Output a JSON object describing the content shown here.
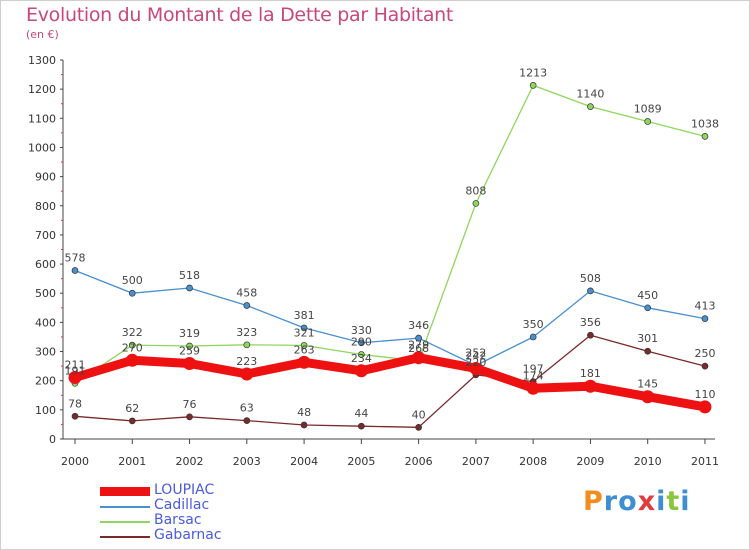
{
  "chart_data": {
    "type": "line",
    "title": "Evolution du Montant de la Dette par Habitant",
    "subtitle": "(en €)",
    "x": [
      "2000",
      "2001",
      "2002",
      "2003",
      "2004",
      "2005",
      "2006",
      "2007",
      "2008",
      "2009",
      "2010",
      "2011"
    ],
    "ylim": [
      0,
      1300
    ],
    "yticks": [
      0,
      100,
      200,
      300,
      400,
      500,
      600,
      700,
      800,
      900,
      1000,
      1100,
      1200,
      1300
    ],
    "grid": false,
    "legend_position": "bottom-left",
    "series": [
      {
        "name": "LOUPIAC",
        "color": "#ee1111",
        "values": [
          211,
          270,
          259,
          223,
          263,
          234,
          279,
          242,
          174,
          181,
          145,
          110
        ]
      },
      {
        "name": "Cadillac",
        "color": "#4a90cf",
        "values": [
          578,
          500,
          518,
          458,
          381,
          330,
          346,
          252,
          350,
          508,
          450,
          413
        ]
      },
      {
        "name": "Barsac",
        "color": "#8fd65f",
        "values": [
          191,
          322,
          319,
          323,
          321,
          290,
          268,
          808,
          1213,
          1140,
          1089,
          1038
        ]
      },
      {
        "name": "Gabarnac",
        "color": "#7a2a2a",
        "values": [
          78,
          62,
          76,
          63,
          48,
          44,
          40,
          220,
          197,
          356,
          301,
          250
        ]
      }
    ]
  },
  "logo": {
    "text": "Proxiti",
    "letters": [
      "P",
      "r",
      "o",
      "x",
      "i",
      "t",
      "i"
    ],
    "colors": [
      "#f28c1e",
      "#3d8fd1",
      "#3d8fd1",
      "#e03c3c",
      "#3d8fd1",
      "#8cc63f",
      "#3d8fd1"
    ]
  }
}
